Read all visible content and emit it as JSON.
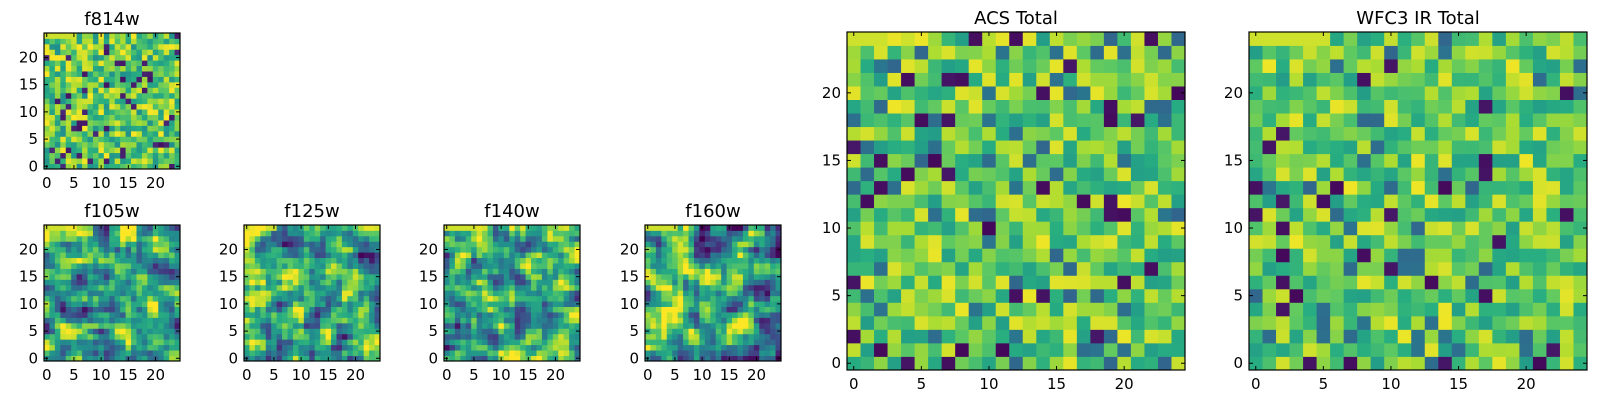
{
  "chart_data": [
    {
      "type": "heatmap",
      "title": "f814w",
      "xlim": [
        -0.5,
        24.5
      ],
      "ylim": [
        -0.5,
        24.5
      ],
      "grid_size": 25,
      "colormap": "viridis",
      "texture": "speckle",
      "seed": 11,
      "xticks": [
        0,
        5,
        10,
        15,
        20
      ],
      "yticks": [
        0,
        5,
        10,
        15,
        20
      ],
      "tick_labels_x": [
        "0",
        "5",
        "10",
        "15",
        "20"
      ],
      "tick_labels_y": [
        "0",
        "5",
        "10",
        "15",
        "20"
      ]
    },
    {
      "type": "heatmap",
      "title": "f105w",
      "xlim": [
        -0.5,
        24.5
      ],
      "ylim": [
        -0.5,
        24.5
      ],
      "grid_size": 25,
      "colormap": "viridis",
      "texture": "smooth",
      "seed": 23,
      "xticks": [
        0,
        5,
        10,
        15,
        20
      ],
      "yticks": [
        0,
        5,
        10,
        15,
        20
      ],
      "tick_labels_x": [
        "0",
        "5",
        "10",
        "15",
        "20"
      ],
      "tick_labels_y": [
        "0",
        "5",
        "10",
        "15",
        "20"
      ]
    },
    {
      "type": "heatmap",
      "title": "f125w",
      "xlim": [
        -0.5,
        24.5
      ],
      "ylim": [
        -0.5,
        24.5
      ],
      "grid_size": 25,
      "colormap": "viridis",
      "texture": "smooth",
      "seed": 37,
      "xticks": [
        0,
        5,
        10,
        15,
        20
      ],
      "yticks": [
        0,
        5,
        10,
        15,
        20
      ],
      "tick_labels_x": [
        "0",
        "5",
        "10",
        "15",
        "20"
      ],
      "tick_labels_y": [
        "0",
        "5",
        "10",
        "15",
        "20"
      ]
    },
    {
      "type": "heatmap",
      "title": "f140w",
      "xlim": [
        -0.5,
        24.5
      ],
      "ylim": [
        -0.5,
        24.5
      ],
      "grid_size": 25,
      "colormap": "viridis",
      "texture": "smooth",
      "seed": 41,
      "xticks": [
        0,
        5,
        10,
        15,
        20
      ],
      "yticks": [
        0,
        5,
        10,
        15,
        20
      ],
      "tick_labels_x": [
        "0",
        "5",
        "10",
        "15",
        "20"
      ],
      "tick_labels_y": [
        "0",
        "5",
        "10",
        "15",
        "20"
      ]
    },
    {
      "type": "heatmap",
      "title": "f160w",
      "xlim": [
        -0.5,
        24.5
      ],
      "ylim": [
        -0.5,
        24.5
      ],
      "grid_size": 25,
      "colormap": "viridis",
      "texture": "smooth",
      "seed": 53,
      "xticks": [
        0,
        5,
        10,
        15,
        20
      ],
      "yticks": [
        0,
        5,
        10,
        15,
        20
      ],
      "tick_labels_x": [
        "0",
        "5",
        "10",
        "15",
        "20"
      ],
      "tick_labels_y": [
        "0",
        "5",
        "10",
        "15",
        "20"
      ]
    },
    {
      "type": "heatmap",
      "title": "ACS Total",
      "xlim": [
        -0.5,
        24.5
      ],
      "ylim": [
        -0.5,
        24.5
      ],
      "grid_size": 25,
      "colormap": "viridis",
      "texture": "blocky",
      "seed": 67,
      "xticks": [
        0,
        5,
        10,
        15,
        20
      ],
      "yticks": [
        0,
        5,
        10,
        15,
        20
      ],
      "tick_labels_x": [
        "0",
        "5",
        "10",
        "15",
        "20"
      ],
      "tick_labels_y": [
        "0",
        "5",
        "10",
        "15",
        "20"
      ]
    },
    {
      "type": "heatmap",
      "title": "WFC3 IR Total",
      "xlim": [
        -0.5,
        24.5
      ],
      "ylim": [
        -0.5,
        24.5
      ],
      "grid_size": 25,
      "colormap": "viridis",
      "texture": "blocky",
      "seed": 79,
      "xticks": [
        0,
        5,
        10,
        15,
        20
      ],
      "yticks": [
        0,
        5,
        10,
        15,
        20
      ],
      "tick_labels_x": [
        "0",
        "5",
        "10",
        "15",
        "20"
      ],
      "tick_labels_y": [
        "0",
        "5",
        "10",
        "15",
        "20"
      ]
    }
  ]
}
